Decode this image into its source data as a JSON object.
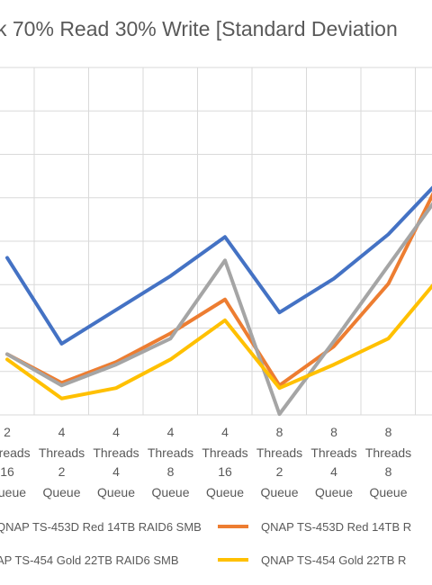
{
  "chart_data": {
    "type": "line",
    "title": "k 70% Read 30% Write [Standard Deviation",
    "categories": [
      [
        "2",
        "Threads",
        "16",
        "Queue"
      ],
      [
        "4",
        "Threads",
        "2",
        "Queue"
      ],
      [
        "4",
        "Threads",
        "4",
        "Queue"
      ],
      [
        "4",
        "Threads",
        "8",
        "Queue"
      ],
      [
        "4",
        "Threads",
        "16",
        "Queue"
      ],
      [
        "8",
        "Threads",
        "2",
        "Queue"
      ],
      [
        "8",
        "Threads",
        "4",
        "Queue"
      ],
      [
        "8",
        "Threads",
        "8",
        "Queue"
      ],
      [
        "",
        "Thr",
        "",
        "Qu"
      ]
    ],
    "ylim": [
      0,
      10
    ],
    "grid": true,
    "legend_position": "bottom",
    "series": [
      {
        "name": "QNAP TS-453D Red 14TB RAID6 SMB",
        "color": "#4472C4",
        "values": [
          4.4,
          1.1,
          2.4,
          3.7,
          5.2,
          2.3,
          3.6,
          5.3,
          7.5
        ]
      },
      {
        "name": "QNAP TS-453D Red 14TB R",
        "color": "#ED7D31",
        "values": [
          0.7,
          -0.4,
          0.4,
          1.5,
          2.8,
          -0.5,
          1.0,
          3.4,
          7.6
        ]
      },
      {
        "name": "AP TS-454 Gold 22TB RAID6 SMB",
        "color": "#A5A5A5",
        "values": [
          0.7,
          -0.5,
          0.3,
          1.3,
          4.3,
          -1.6,
          1.2,
          4.1,
          7.0
        ]
      },
      {
        "name": "QNAP TS-454 Gold 22TB R",
        "color": "#FFC000",
        "values": [
          0.5,
          -1.0,
          -0.6,
          0.5,
          2.0,
          -0.6,
          0.3,
          1.3,
          3.8
        ]
      }
    ]
  }
}
